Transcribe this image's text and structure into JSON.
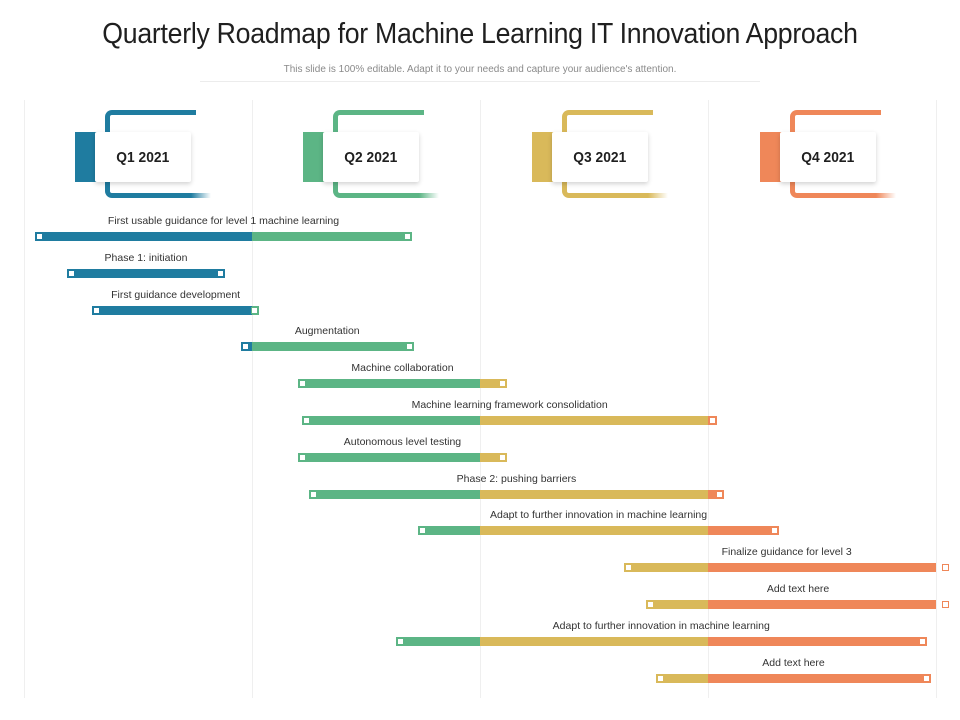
{
  "header": {
    "title": "Quarterly Roadmap for Machine Learning IT Innovation Approach",
    "subtitle": "This slide is 100% editable. Adapt it to your needs and capture your audience's attention."
  },
  "colors": {
    "q1": "#1f7ca0",
    "q2": "#5cb585",
    "q3": "#d9b95a",
    "q4": "#ef8759"
  },
  "quarters": [
    {
      "label": "Q1 2021",
      "color_key": "q1"
    },
    {
      "label": "Q2 2021",
      "color_key": "q2"
    },
    {
      "label": "Q3 2021",
      "color_key": "q3"
    },
    {
      "label": "Q4 2021",
      "color_key": "q4"
    }
  ],
  "tasks": [
    {
      "label": "First usable guidance for level 1 machine  learning",
      "start": 0.05,
      "end": 1.7
    },
    {
      "label": "Phase 1: initiation",
      "start": 0.19,
      "end": 0.88
    },
    {
      "label": "First guidance development",
      "start": 0.3,
      "end": 1.03
    },
    {
      "label": "Augmentation",
      "start": 0.95,
      "end": 1.71
    },
    {
      "label": "Machine collaboration",
      "start": 1.2,
      "end": 2.12
    },
    {
      "label": "Machine learning framework consolidation",
      "start": 1.22,
      "end": 3.04
    },
    {
      "label": "Autonomous  level testing",
      "start": 1.2,
      "end": 2.12
    },
    {
      "label": "Phase 2: pushing barriers",
      "start": 1.25,
      "end": 3.07
    },
    {
      "label": "Adapt to further  innovation in machine learning",
      "start": 1.73,
      "end": 3.31
    },
    {
      "label": "Finalize guidance for level 3",
      "start": 2.63,
      "end": 4.06
    },
    {
      "label": "Add text here",
      "start": 2.73,
      "end": 4.06
    },
    {
      "label": "Adapt to further innovation in machine learning",
      "start": 1.63,
      "end": 3.96
    },
    {
      "label": "Add text here",
      "start": 2.77,
      "end": 3.98
    }
  ]
}
